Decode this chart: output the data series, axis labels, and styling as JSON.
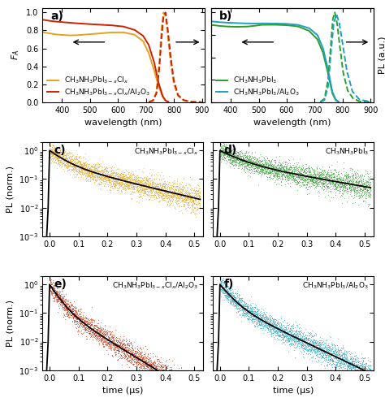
{
  "panel_a": {
    "label": "a)",
    "absorption_orange_x": [
      330,
      340,
      360,
      380,
      400,
      430,
      460,
      500,
      540,
      580,
      620,
      660,
      690,
      710,
      730,
      745,
      760,
      770,
      780
    ],
    "absorption_orange_y": [
      0.78,
      0.775,
      0.765,
      0.755,
      0.75,
      0.745,
      0.748,
      0.758,
      0.768,
      0.778,
      0.778,
      0.752,
      0.68,
      0.55,
      0.35,
      0.18,
      0.06,
      0.02,
      0.005
    ],
    "absorption_red_x": [
      330,
      340,
      360,
      380,
      400,
      430,
      460,
      500,
      540,
      580,
      620,
      660,
      690,
      710,
      730,
      745,
      760,
      770,
      780
    ],
    "absorption_red_y": [
      0.92,
      0.915,
      0.905,
      0.898,
      0.893,
      0.885,
      0.878,
      0.87,
      0.863,
      0.856,
      0.843,
      0.805,
      0.74,
      0.64,
      0.44,
      0.22,
      0.07,
      0.02,
      0.005
    ],
    "pl_orange_x": [
      710,
      725,
      738,
      748,
      756,
      763,
      770,
      778,
      788,
      800,
      815,
      835,
      860,
      900
    ],
    "pl_orange_y": [
      0.005,
      0.02,
      0.12,
      0.45,
      0.82,
      1.0,
      0.95,
      0.75,
      0.45,
      0.2,
      0.07,
      0.02,
      0.005,
      0.001
    ],
    "pl_red_x": [
      710,
      725,
      738,
      748,
      756,
      763,
      770,
      778,
      788,
      800,
      815,
      835,
      860,
      900
    ],
    "pl_red_y": [
      0.005,
      0.018,
      0.1,
      0.38,
      0.72,
      0.96,
      1.0,
      0.82,
      0.52,
      0.24,
      0.08,
      0.025,
      0.006,
      0.001
    ],
    "color_orange": "#e8a020",
    "color_red": "#cc2200",
    "legend1": "CH$_3$NH$_3$PbI$_{3-x}$Cl$_x$",
    "legend2": "CH$_3$NH$_3$PbI$_{3-x}$Cl$_x$/Al$_2$O$_3$",
    "ylabel": "$F_A$",
    "xlabel": "wavelength (nm)",
    "xlim": [
      330,
      910
    ],
    "ylim": [
      0.0,
      1.05
    ]
  },
  "panel_b": {
    "label": "b)",
    "absorption_green_x": [
      330,
      340,
      360,
      390,
      420,
      460,
      490,
      510,
      530,
      560,
      600,
      640,
      680,
      710,
      730,
      748,
      763,
      775,
      785
    ],
    "absorption_green_y": [
      0.86,
      0.858,
      0.85,
      0.843,
      0.84,
      0.843,
      0.853,
      0.862,
      0.863,
      0.863,
      0.858,
      0.845,
      0.795,
      0.7,
      0.55,
      0.32,
      0.1,
      0.025,
      0.005
    ],
    "absorption_cyan_x": [
      330,
      340,
      360,
      390,
      420,
      460,
      490,
      510,
      530,
      560,
      600,
      640,
      680,
      710,
      730,
      748,
      763,
      775,
      785
    ],
    "absorption_cyan_y": [
      0.9,
      0.898,
      0.892,
      0.886,
      0.882,
      0.878,
      0.877,
      0.878,
      0.878,
      0.877,
      0.873,
      0.862,
      0.825,
      0.748,
      0.6,
      0.36,
      0.12,
      0.03,
      0.006
    ],
    "pl_green_x": [
      720,
      735,
      748,
      758,
      765,
      772,
      780,
      790,
      802,
      818,
      838,
      860,
      900
    ],
    "pl_green_y": [
      0.005,
      0.04,
      0.25,
      0.65,
      0.93,
      1.0,
      0.88,
      0.62,
      0.33,
      0.13,
      0.04,
      0.01,
      0.002
    ],
    "pl_cyan_x": [
      720,
      735,
      748,
      758,
      768,
      778,
      788,
      800,
      815,
      835,
      860,
      900
    ],
    "pl_cyan_y": [
      0.003,
      0.025,
      0.18,
      0.55,
      0.88,
      0.98,
      0.88,
      0.65,
      0.35,
      0.12,
      0.03,
      0.005
    ],
    "color_green": "#2a9d2a",
    "color_cyan": "#20a0c0",
    "legend1": "CH$_3$NH$_3$PbI$_3$",
    "legend2": "CH$_3$NH$_3$PbI$_3$/Al$_2$O$_3$",
    "ylabel": "PL (a.u.)",
    "xlabel": "wavelength (nm)",
    "xlim": [
      330,
      910
    ],
    "ylim": [
      0.0,
      1.05
    ]
  },
  "panel_c": {
    "label": "c)",
    "title": "CH$_3$NH$_3$PbI$_{3-x}$Cl$_x$",
    "color_data": "#e8a020",
    "decay_tau1": 0.045,
    "decay_tau2": 0.18,
    "decay_A2": 0.35
  },
  "panel_d": {
    "label": "d)",
    "title": "CH$_3$NH$_3$PbI$_3$",
    "color_data": "#2a9d2a",
    "decay_tau1": 0.06,
    "decay_tau2": 0.25,
    "decay_A2": 0.4
  },
  "panel_e": {
    "label": "e)",
    "title": "CH$_3$NH$_3$PbI$_{3-x}$Cl$_x$/Al$_2$O$_3$",
    "color_data": "#cc2200",
    "decay_tau1": 0.025,
    "decay_tau2": 0.07,
    "decay_A2": 0.2
  },
  "panel_f": {
    "label": "f)",
    "title": "CH$_3$NH$_3$PbI$_3$/Al$_2$O$_3$",
    "color_data": "#20a0c0",
    "decay_tau1": 0.03,
    "decay_tau2": 0.09,
    "decay_A2": 0.25
  },
  "decay_xlim": [
    -0.025,
    0.53
  ],
  "font_size_label": 8,
  "font_size_tick": 7,
  "font_size_legend": 6.5,
  "font_size_panel": 10
}
